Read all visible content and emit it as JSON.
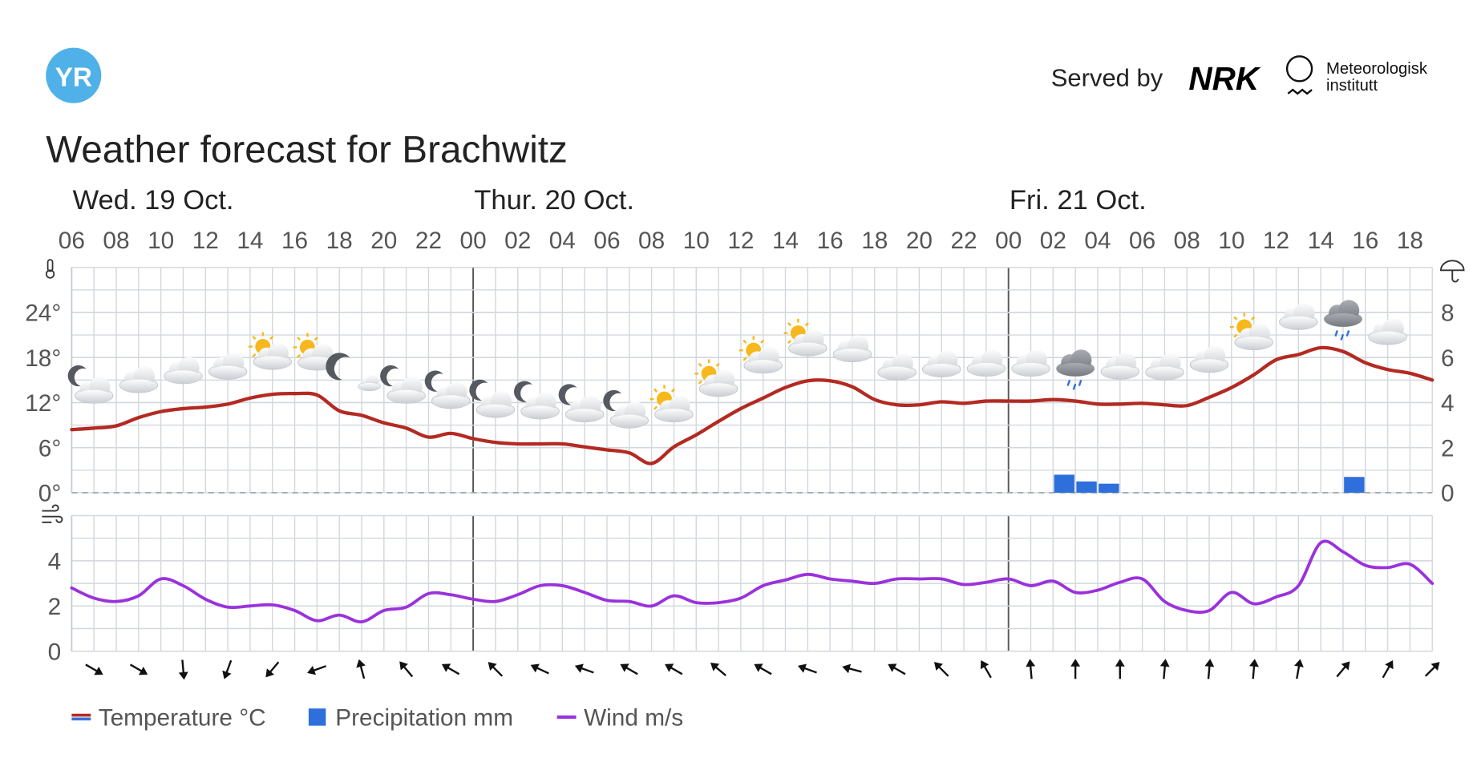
{
  "header": {
    "logo": "YR",
    "served_by": "Served by",
    "partner": "NRK",
    "institute_line1": "Meteorologisk",
    "institute_line2": "institutt",
    "title": "Weather forecast for Brachwitz"
  },
  "chart_data": [
    {
      "type": "line",
      "days": [
        "Wed. 19 Oct.",
        "Thur. 20 Oct.",
        "Fri. 21 Oct."
      ],
      "categories": [
        "06",
        null,
        "08",
        null,
        "10",
        null,
        "12",
        null,
        "14",
        null,
        "16",
        null,
        "18",
        null,
        "20",
        null,
        "22",
        null,
        "00",
        null,
        "02",
        null,
        "04",
        null,
        "06",
        null,
        "08",
        null,
        "10",
        null,
        "12",
        null,
        "14",
        null,
        "16",
        null,
        "18",
        null,
        "20",
        null,
        "22",
        null,
        "00",
        null,
        "02",
        null,
        "04",
        null,
        "06",
        null,
        "08",
        null,
        "10",
        null,
        "12",
        null,
        "14",
        null,
        "16",
        null,
        "18",
        null
      ],
      "ylim": [
        0,
        30
      ],
      "yticks": [
        {
          "value": 0,
          "label": "0°"
        },
        {
          "value": 6,
          "label": "6°"
        },
        {
          "value": 12,
          "label": "12°"
        },
        {
          "value": 18,
          "label": "18°"
        },
        {
          "value": 24,
          "label": "24°"
        }
      ],
      "y2lim": [
        0,
        10
      ],
      "y2ticks": [
        0,
        2,
        4,
        6,
        8
      ],
      "grid": true,
      "series": [
        {
          "name": "Temperature °C",
          "color": "#b32a22",
          "values": [
            8.4,
            8.6,
            8.9,
            10.0,
            10.8,
            11.2,
            11.4,
            11.8,
            12.6,
            13.1,
            13.2,
            13.0,
            10.9,
            10.3,
            9.3,
            8.6,
            7.4,
            7.9,
            7.2,
            6.7,
            6.5,
            6.5,
            6.5,
            6.1,
            5.7,
            5.3,
            3.9,
            6.1,
            7.7,
            9.5,
            11.2,
            12.6,
            14.0,
            14.9,
            14.9,
            14.1,
            12.4,
            11.7,
            11.7,
            12.1,
            11.9,
            12.2,
            12.2,
            12.2,
            12.4,
            12.2,
            11.8,
            11.8,
            11.9,
            11.7,
            11.6,
            12.7,
            14.0,
            15.7,
            17.7,
            18.4,
            19.3,
            18.8,
            17.3,
            16.4,
            15.9,
            15.0
          ]
        },
        {
          "name": "Precipitation mm",
          "color": "#2f6fdc",
          "axis": "y2",
          "type": "bar",
          "values": [
            0,
            0,
            0,
            0,
            0,
            0,
            0,
            0,
            0,
            0,
            0,
            0,
            0,
            0,
            0,
            0,
            0,
            0,
            0,
            0,
            0,
            0,
            0,
            0,
            0,
            0,
            0,
            0,
            0,
            0,
            0,
            0,
            0,
            0,
            0,
            0,
            0,
            0,
            0,
            0,
            0,
            0,
            0,
            0,
            0.8,
            0.5,
            0.4,
            0,
            0,
            0,
            0,
            0,
            0,
            0,
            0,
            0,
            0,
            0.7,
            0,
            0,
            0,
            0
          ]
        }
      ]
    },
    {
      "type": "line",
      "ylim": [
        0,
        6
      ],
      "yticks": [
        0,
        2,
        4
      ],
      "grid": true,
      "series": [
        {
          "name": "Wind m/s",
          "color": "#9a32dc",
          "values": [
            2.8,
            2.35,
            2.2,
            2.45,
            3.2,
            2.9,
            2.3,
            1.95,
            2.0,
            2.05,
            1.8,
            1.35,
            1.6,
            1.3,
            1.8,
            1.95,
            2.55,
            2.5,
            2.3,
            2.2,
            2.5,
            2.9,
            2.9,
            2.6,
            2.25,
            2.2,
            2.0,
            2.45,
            2.15,
            2.15,
            2.35,
            2.9,
            3.15,
            3.4,
            3.2,
            3.1,
            3.0,
            3.2,
            3.2,
            3.2,
            2.95,
            3.05,
            3.2,
            2.9,
            3.1,
            2.6,
            2.7,
            3.05,
            3.2,
            2.2,
            1.8,
            1.8,
            2.6,
            2.1,
            2.4,
            2.9,
            4.8,
            4.4,
            3.8,
            3.7,
            3.85,
            3.0
          ],
          "directions": [
            null,
            120,
            null,
            120,
            null,
            175,
            null,
            200,
            null,
            220,
            null,
            250,
            null,
            345,
            null,
            320,
            null,
            300,
            null,
            315,
            null,
            295,
            null,
            290,
            null,
            300,
            null,
            300,
            null,
            310,
            null,
            300,
            null,
            290,
            null,
            285,
            null,
            300,
            null,
            315,
            null,
            330,
            null,
            355,
            null,
            0,
            null,
            0,
            null,
            5,
            null,
            5,
            null,
            5,
            null,
            10,
            null,
            40,
            null,
            30,
            null,
            45
          ]
        }
      ]
    }
  ]
}
